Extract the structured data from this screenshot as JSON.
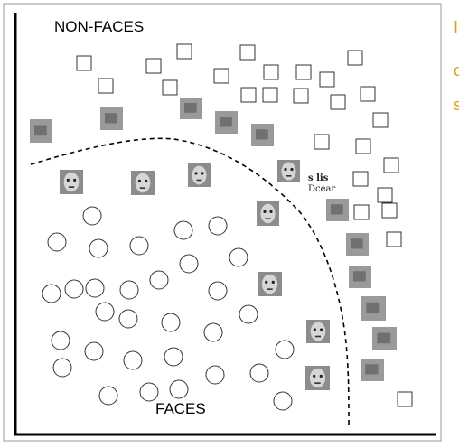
{
  "labels": {
    "non_faces": "NON-FACES",
    "faces": "FACES"
  },
  "side_text": [
    "I",
    "c",
    "s"
  ],
  "snippet_text": [
    "s lis",
    "Dcear"
  ],
  "colors": {
    "axis": "#000000",
    "marker_stroke": "#333333",
    "boundary": "#000000",
    "side_text": "#d9a21a"
  },
  "marker_shapes": {
    "non_face": "square",
    "face": "circle",
    "example": "image-thumbnail"
  }
}
